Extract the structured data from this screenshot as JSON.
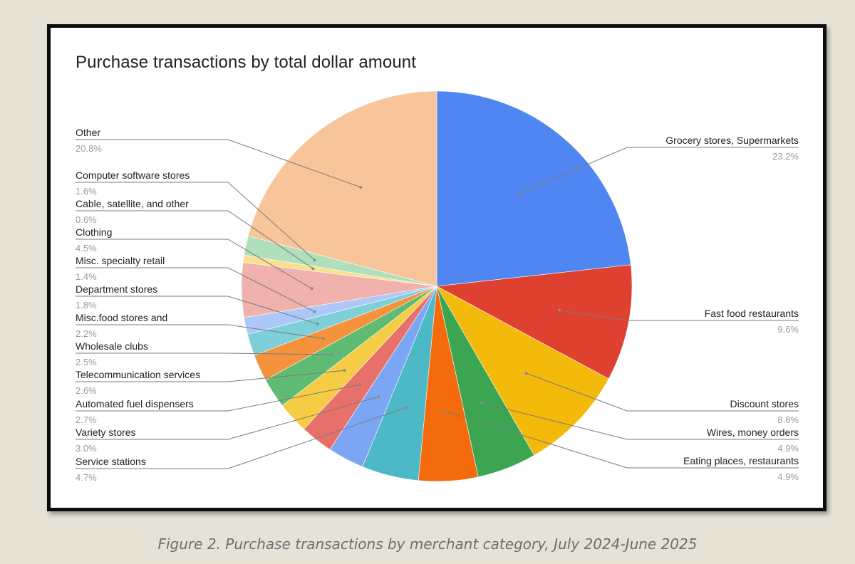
{
  "chart_data": {
    "type": "pie",
    "title": "Purchase transactions by total dollar amount",
    "slices": [
      {
        "label": "Grocery stores, Supermarkets",
        "value": 23.2,
        "value_label": "23.2%",
        "color": "#4f86f1"
      },
      {
        "label": "Fast food restaurants",
        "value": 9.6,
        "value_label": "9.6%",
        "color": "#df4130"
      },
      {
        "label": "Discount stores",
        "value": 8.8,
        "value_label": "8.8%",
        "color": "#f3b90b"
      },
      {
        "label": "Wires, money orders",
        "value": 4.9,
        "value_label": "4.9%",
        "color": "#3ca552"
      },
      {
        "label": "Eating places, restaurants",
        "value": 4.9,
        "value_label": "4.9%",
        "color": "#f36b0c"
      },
      {
        "label": "Service stations",
        "value": 4.7,
        "value_label": "4.7%",
        "color": "#4db9c6"
      },
      {
        "label": "Variety stores",
        "value": 3.0,
        "value_label": "3.0%",
        "color": "#7ba6f4"
      },
      {
        "label": "Automated fuel dispensers",
        "value": 2.7,
        "value_label": "2.7%",
        "color": "#e7716a"
      },
      {
        "label": "Telecommunication services",
        "value": 2.6,
        "value_label": "2.6%",
        "color": "#f5cc44"
      },
      {
        "label": "Wholesale clubs",
        "value": 2.5,
        "value_label": "2.5%",
        "color": "#5fba73"
      },
      {
        "label": "Misc.food stores and",
        "value": 2.2,
        "value_label": "2.2%",
        "color": "#f5923c"
      },
      {
        "label": "Department stores",
        "value": 1.8,
        "value_label": "1.8%",
        "color": "#7fcfd8"
      },
      {
        "label": "Misc. specialty retail",
        "value": 1.4,
        "value_label": "1.4%",
        "color": "#adc8f8"
      },
      {
        "label": "Clothing",
        "value": 4.5,
        "value_label": "4.5%",
        "color": "#f1b2ae"
      },
      {
        "label": "Cable, satellite, and other",
        "value": 0.6,
        "value_label": "0.6%",
        "color": "#f9e08d"
      },
      {
        "label": "Computer software stores",
        "value": 1.6,
        "value_label": "1.6%",
        "color": "#afdfbb"
      },
      {
        "label": "Other",
        "value": 20.8,
        "value_label": "20.8%",
        "color": "#f8c49a"
      }
    ]
  },
  "caption": "Figure 2. Purchase transactions by merchant category, July 2024-June 2025"
}
